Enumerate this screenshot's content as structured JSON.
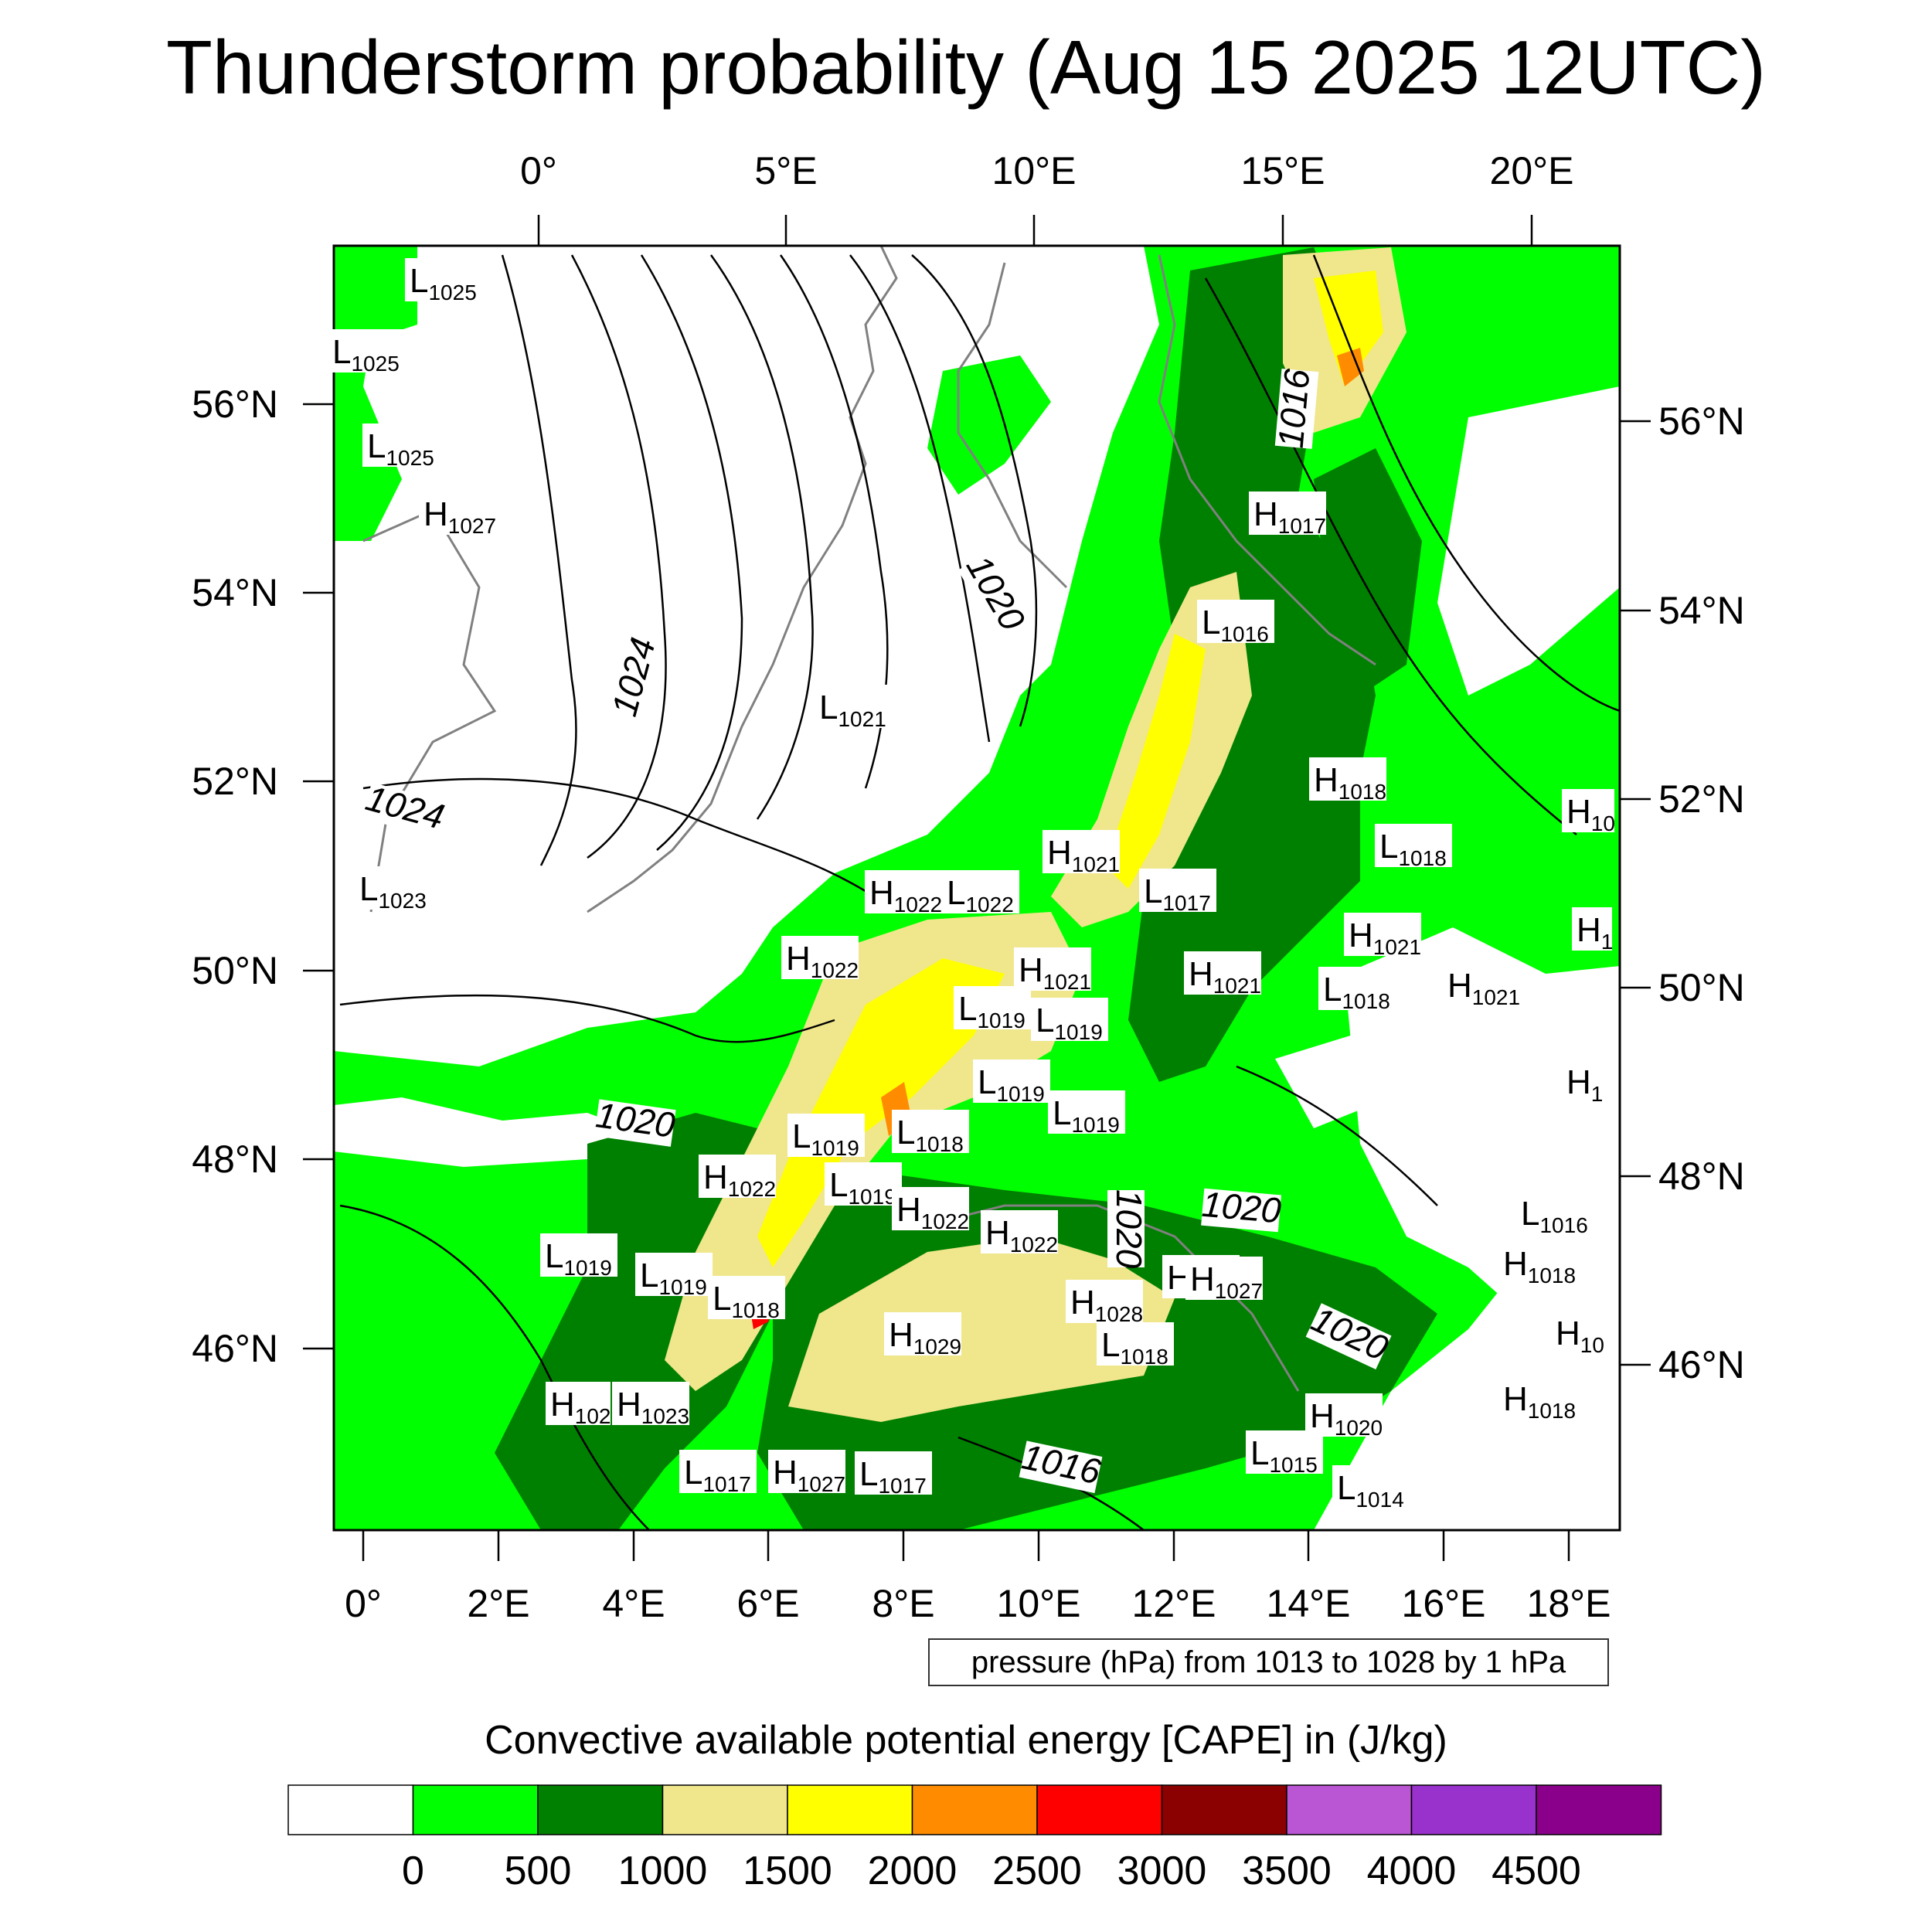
{
  "title": "Thunderstorm probability (Aug 15 2025 12UTC)",
  "top_axis": [
    "0°",
    "5°E",
    "10°E",
    "15°E",
    "20°E"
  ],
  "bottom_axis": [
    "0°",
    "2°E",
    "4°E",
    "6°E",
    "8°E",
    "10°E",
    "12°E",
    "14°E",
    "16°E",
    "18°E"
  ],
  "left_axis": [
    "56°N",
    "54°N",
    "52°N",
    "50°N",
    "48°N",
    "46°N"
  ],
  "right_axis": [
    "56°N",
    "54°N",
    "52°N",
    "50°N",
    "48°N",
    "46°N"
  ],
  "isobar_labels": [
    "1024",
    "1024",
    "1020",
    "1020",
    "1016",
    "1020",
    "1020",
    "1016",
    "1020"
  ],
  "pressure_systems": [
    {
      "kind": "L",
      "value": "1025"
    },
    {
      "kind": "L",
      "value": "1025"
    },
    {
      "kind": "L",
      "value": "1025"
    },
    {
      "kind": "H",
      "value": "1027"
    },
    {
      "kind": "L",
      "value": "1023"
    },
    {
      "kind": "L",
      "value": "1021"
    },
    {
      "kind": "L",
      "value": "1016"
    },
    {
      "kind": "H",
      "value": "1017"
    },
    {
      "kind": "H",
      "value": "1018"
    },
    {
      "kind": "L",
      "value": "1018"
    },
    {
      "kind": "H",
      "value": "1021"
    },
    {
      "kind": "L",
      "value": "1017"
    },
    {
      "kind": "H",
      "value": "1022"
    },
    {
      "kind": "L",
      "value": "1022"
    },
    {
      "kind": "H",
      "value": "1022"
    },
    {
      "kind": "H",
      "value": "1021"
    },
    {
      "kind": "L",
      "value": "1019"
    },
    {
      "kind": "L",
      "value": "1019"
    },
    {
      "kind": "H",
      "value": "1021"
    },
    {
      "kind": "H",
      "value": "1021"
    },
    {
      "kind": "L",
      "value": "1018"
    },
    {
      "kind": "H",
      "value": "1021"
    },
    {
      "kind": "L",
      "value": "1019"
    },
    {
      "kind": "L",
      "value": "1019"
    },
    {
      "kind": "L",
      "value": "1019"
    },
    {
      "kind": "L",
      "value": "1018"
    },
    {
      "kind": "H",
      "value": "1022"
    },
    {
      "kind": "L",
      "value": "1019"
    },
    {
      "kind": "H",
      "value": "1022"
    },
    {
      "kind": "H",
      "value": "1022"
    },
    {
      "kind": "L",
      "value": "1019"
    },
    {
      "kind": "L",
      "value": "1019"
    },
    {
      "kind": "H",
      "value": "1021"
    },
    {
      "kind": "L",
      "value": "1018"
    },
    {
      "kind": "H",
      "value": "1028"
    },
    {
      "kind": "H",
      "value": "1027"
    },
    {
      "kind": "H",
      "value": "1029"
    },
    {
      "kind": "L",
      "value": "1018"
    },
    {
      "kind": "H",
      "value": "102"
    },
    {
      "kind": "H",
      "value": "1023"
    },
    {
      "kind": "L",
      "value": "1017"
    },
    {
      "kind": "H",
      "value": "1027"
    },
    {
      "kind": "L",
      "value": "1017"
    },
    {
      "kind": "H",
      "value": "1020"
    },
    {
      "kind": "L",
      "value": "1015"
    },
    {
      "kind": "L",
      "value": "1014"
    },
    {
      "kind": "L",
      "value": "1016"
    },
    {
      "kind": "H",
      "value": "1018"
    },
    {
      "kind": "H",
      "value": "1018"
    },
    {
      "kind": "H",
      "value": "10"
    },
    {
      "kind": "H",
      "value": "1"
    },
    {
      "kind": "H",
      "value": "1"
    },
    {
      "kind": "H",
      "value": "10"
    }
  ],
  "pressure_note": "pressure (hPa) from 1013 to 1028 by 1 hPa",
  "colorbar": {
    "title": "Convective available potential energy [CAPE] in (J/kg)",
    "colors": [
      "#ffffff",
      "#00ff00",
      "#008000",
      "#f0e68c",
      "#ffff00",
      "#ff8c00",
      "#ff0000",
      "#8b0000",
      "#ba55d3",
      "#9932cc",
      "#8b008b"
    ],
    "labels": [
      "0",
      "500",
      "1000",
      "1500",
      "2000",
      "2500",
      "3000",
      "3500",
      "4000",
      "4500"
    ]
  }
}
